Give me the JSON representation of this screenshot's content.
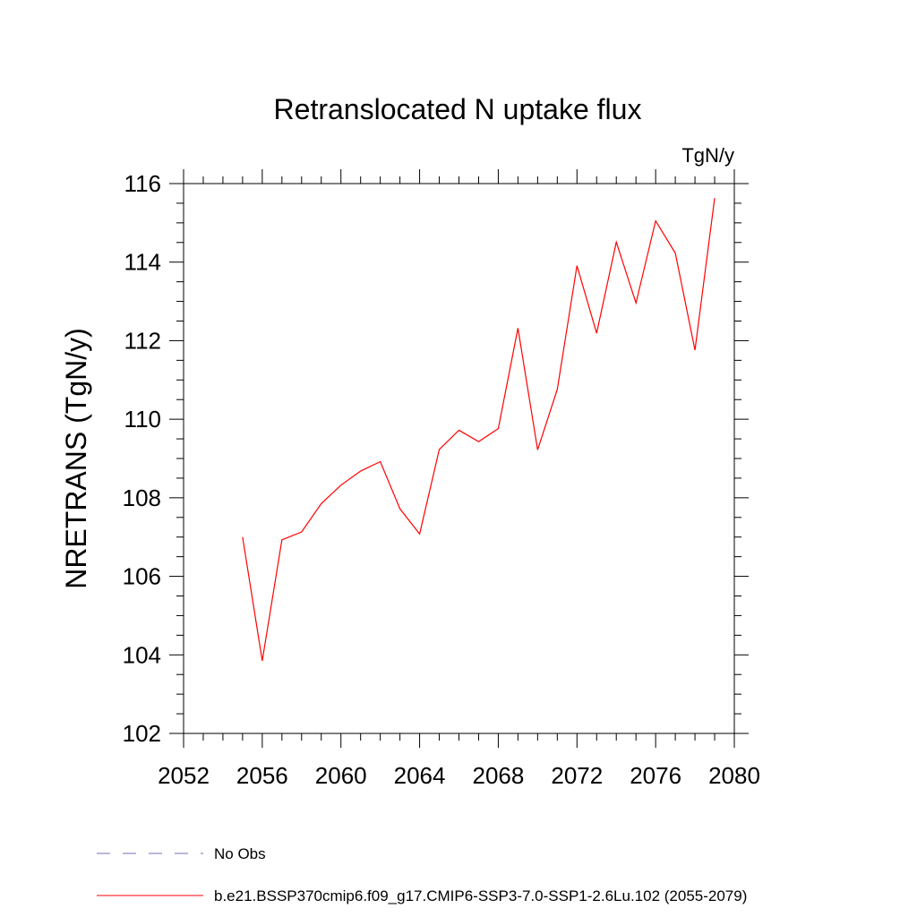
{
  "chart_data": {
    "type": "line",
    "title": "Retranslocated N uptake flux",
    "units": "TgN/y",
    "ylabel": "NRETRANS  (TgN/y)",
    "xlabel": "",
    "xlim": [
      2052,
      2080
    ],
    "ylim": [
      102,
      116
    ],
    "xticks": [
      2052,
      2056,
      2060,
      2064,
      2068,
      2072,
      2076,
      2080
    ],
    "yticks": [
      102,
      104,
      106,
      108,
      110,
      112,
      114,
      116
    ],
    "grid": false,
    "x": [
      2055,
      2056,
      2057,
      2058,
      2059,
      2060,
      2061,
      2062,
      2063,
      2064,
      2065,
      2066,
      2067,
      2068,
      2069,
      2070,
      2071,
      2072,
      2073,
      2074,
      2075,
      2076,
      2077,
      2078,
      2079
    ],
    "series": [
      {
        "name": "b.e21.BSSP370cmip6.f09_g17.CMIP6-SSP3-7.0-SSP1-2.6Lu.102 (2055-2079)",
        "color": "#ff0000",
        "values": [
          107.0,
          103.85,
          106.93,
          107.13,
          107.85,
          108.32,
          108.68,
          108.92,
          107.72,
          107.08,
          109.23,
          109.72,
          109.43,
          109.76,
          112.32,
          109.22,
          110.76,
          113.91,
          112.19,
          114.51,
          112.96,
          115.05,
          114.23,
          111.76,
          115.63
        ]
      }
    ],
    "legend": [
      {
        "label": "No Obs",
        "color": "#7b68b5",
        "style": "dashed"
      },
      {
        "label": "b.e21.BSSP370cmip6.f09_g17.CMIP6-SSP3-7.0-SSP1-2.6Lu.102 (2055-2079)",
        "color": "#ff0000",
        "style": "solid"
      }
    ],
    "legend_position": "bottom-left"
  }
}
